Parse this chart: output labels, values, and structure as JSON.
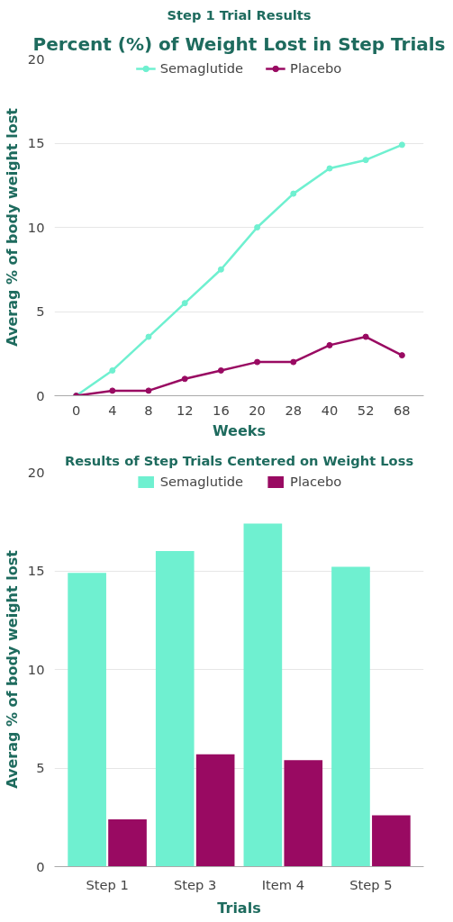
{
  "chart_data": [
    {
      "type": "line",
      "title": "Percent (%) of Weight Lost in Step Trials",
      "subtitle": "Step 1 Trial Results",
      "xlabel": "Weeks",
      "ylabel": "Averag % of body weight lost",
      "categories": [
        "0",
        "4",
        "8",
        "12",
        "16",
        "20",
        "28",
        "40",
        "52",
        "68"
      ],
      "series": [
        {
          "name": "Semaglutide",
          "color": "#6ff0d0",
          "values": [
            0,
            1.5,
            3.5,
            5.5,
            7.5,
            10,
            12,
            13.5,
            14,
            14.9
          ]
        },
        {
          "name": "Placebo",
          "color": "#990a62",
          "values": [
            0,
            0.3,
            0.3,
            1,
            1.5,
            2,
            2,
            3,
            3.5,
            2.4
          ]
        }
      ],
      "ylim": [
        0,
        20
      ],
      "yticks": [
        0,
        5,
        10,
        15,
        20
      ],
      "grid": "y",
      "legend": "top",
      "marker": "circle",
      "line_style": "solid"
    },
    {
      "type": "bar",
      "title": "Results of Step Trials Centered on Weight Loss",
      "xlabel": "Trials",
      "ylabel": "Averag % of body weight lost",
      "categories": [
        "Step 1",
        "Step 3",
        "Item 4",
        "Step 5"
      ],
      "series": [
        {
          "name": "Semaglutide",
          "color": "#6ff0d0",
          "values": [
            14.9,
            16,
            17.4,
            15.2
          ]
        },
        {
          "name": "Placebo",
          "color": "#990a62",
          "values": [
            2.4,
            5.7,
            5.4,
            2.6
          ]
        }
      ],
      "ylim": [
        0,
        20
      ],
      "yticks": [
        0,
        5,
        10,
        15,
        20
      ],
      "grid": "y",
      "legend": "top"
    }
  ]
}
